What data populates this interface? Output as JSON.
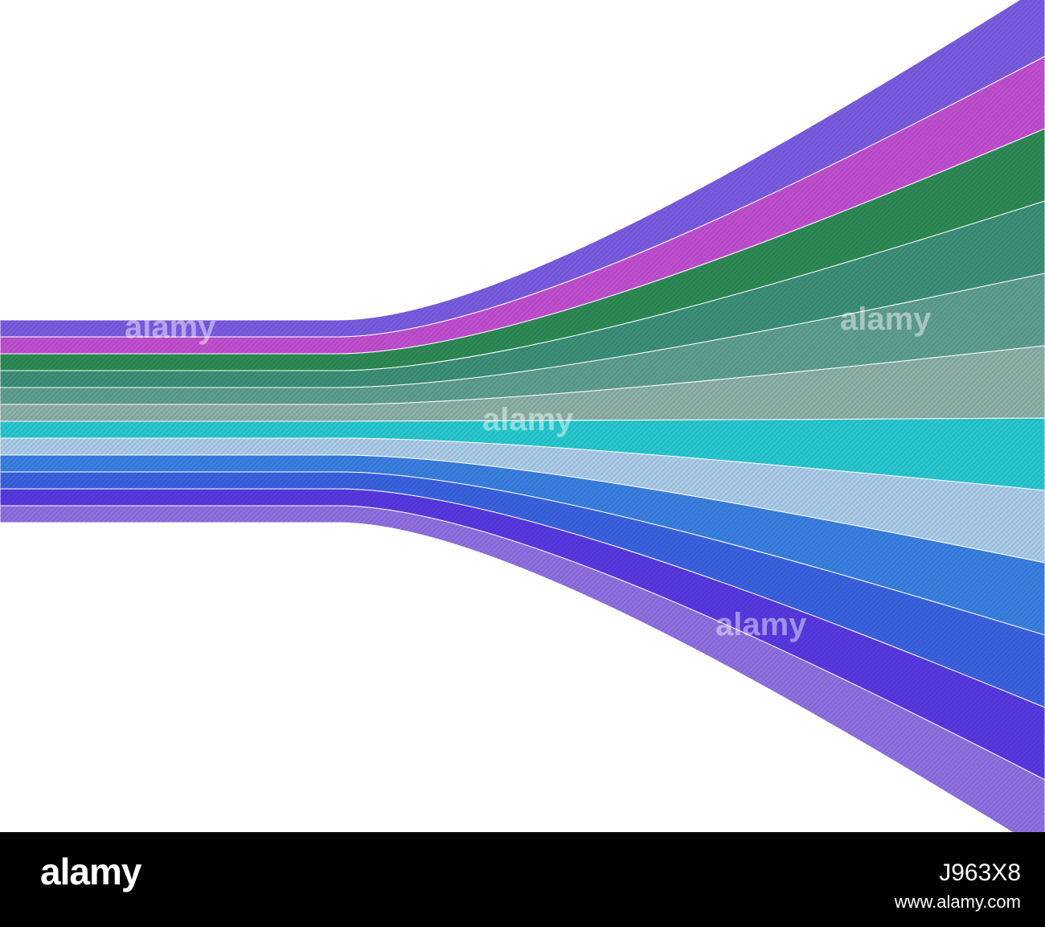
{
  "artwork": {
    "band_colors": [
      "#7a5be0",
      "#c04fd0",
      "#2e8a55",
      "#3c8f78",
      "#5e9e90",
      "#8ab0a8",
      "#28c7cf",
      "#aacbe8",
      "#3a7fe0",
      "#3a62e0",
      "#5838e0",
      "#8f6fe0"
    ],
    "background_color": "#ffffff",
    "watermark_text": "alamy"
  },
  "footer": {
    "logo": "alamy",
    "image_id": "J963X8",
    "url": "www.alamy.com",
    "background_color": "#000000"
  }
}
